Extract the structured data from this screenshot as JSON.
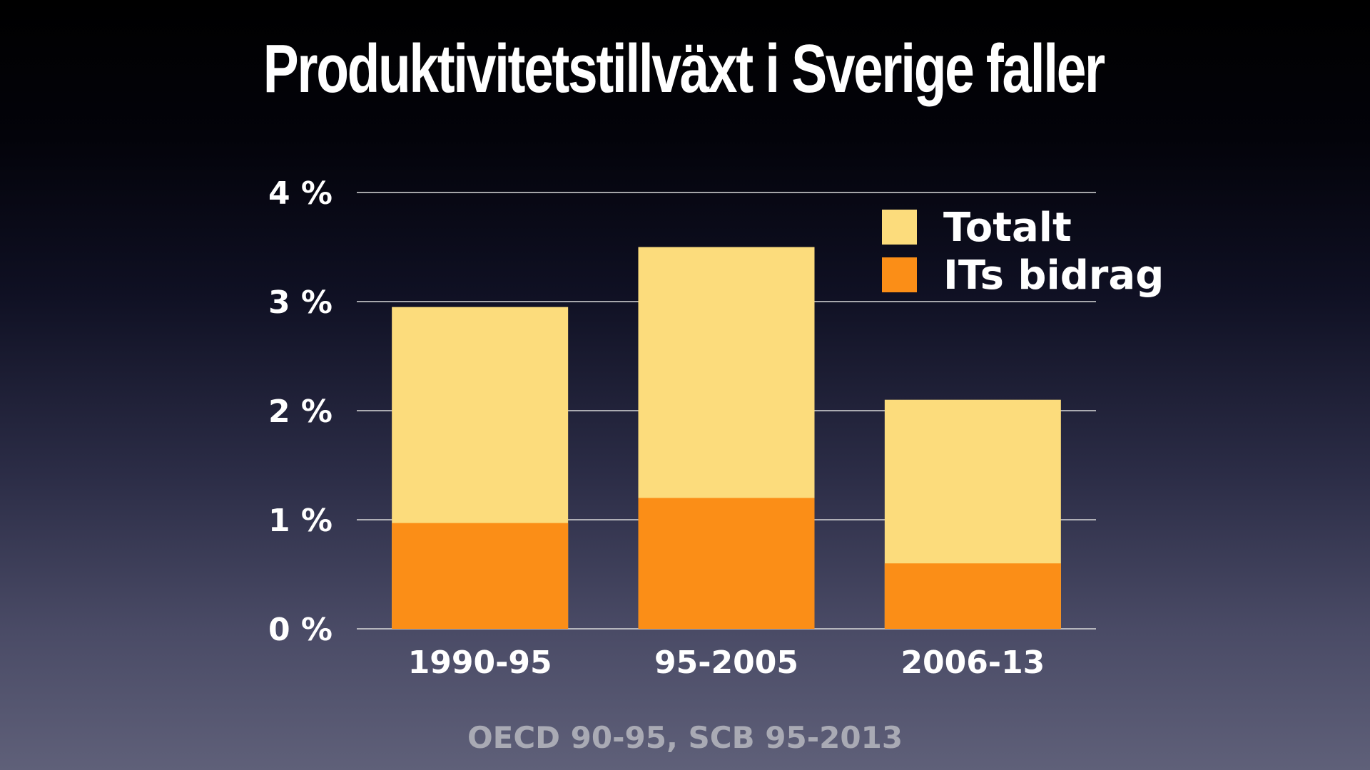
{
  "title": "Produktivitetstillväxt i Sverige faller",
  "source": "OECD 90-95, SCB 95-2013",
  "colors": {
    "totalt": "#fcdc7c",
    "its_bidrag": "#fb8e17",
    "gridline": "#d9d9d9"
  },
  "chart_data": {
    "type": "bar",
    "stacked": false,
    "overlapped": true,
    "title": "Produktivitetstillväxt i Sverige faller",
    "categories": [
      "1990-95",
      "95-2005",
      "2006-13"
    ],
    "series": [
      {
        "name": "Totalt",
        "values": [
          2.95,
          3.5,
          2.1
        ]
      },
      {
        "name": "ITs bidrag",
        "values": [
          0.97,
          1.2,
          0.6
        ]
      }
    ],
    "yticks": [
      "0 %",
      "1 %",
      "2 %",
      "3 %",
      "4 %"
    ],
    "ylim": [
      0,
      4
    ],
    "grid": true,
    "legend": "top-right"
  }
}
